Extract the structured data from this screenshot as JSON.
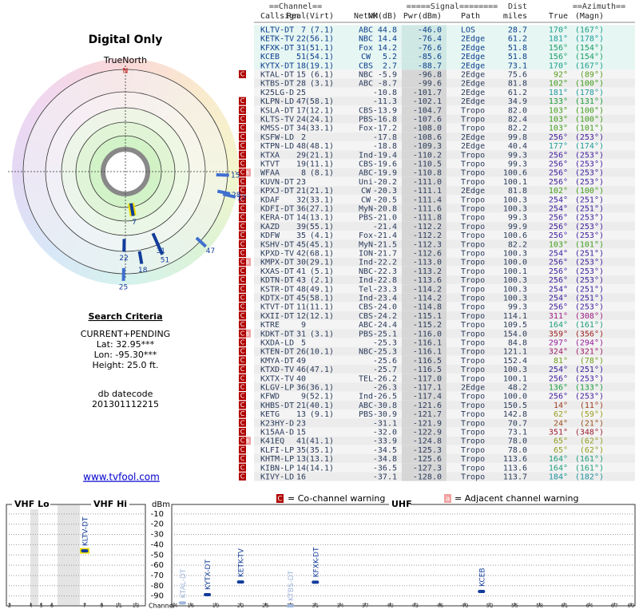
{
  "polar": {
    "title": "Digital Only",
    "north_label": "TrueNorth",
    "north": "N"
  },
  "search": {
    "title": "Search Criteria",
    "mode": "CURRENT+PENDING",
    "lat": "Lat: 32.95***",
    "lon": "Lon: -95.30***",
    "height": "Height: 25.0 ft.",
    "datecode_label": "db datecode",
    "datecode": "201301112215"
  },
  "link": "www.tvfool.com",
  "table": {
    "group_headers": [
      "==Channel==",
      "=====Signal========",
      "Dist",
      "==Azimuth=="
    ],
    "columns": [
      "Callsign",
      "Real",
      "(Virt)",
      "Netwk",
      "NM(dB)",
      "Pwr(dBm)",
      "Path",
      "miles",
      "True",
      "(Magn)"
    ],
    "rows": [
      [
        null,
        null,
        "KLTV-DT",
        7,
        "(7.1)",
        "ABC",
        "44.8",
        "-46.0",
        "LOS",
        "28.7",
        "170°",
        "(167°)"
      ],
      [
        null,
        null,
        "KETK-TV",
        22,
        "(56.1)",
        "NBC",
        "14.4",
        "-76.4",
        "2Edge",
        "61.2",
        "181°",
        "(178°)"
      ],
      [
        null,
        null,
        "KFXK-DT",
        31,
        "(51.1)",
        "Fox",
        "14.2",
        "-76.6",
        "2Edge",
        "51.8",
        "156°",
        "(154°)"
      ],
      [
        null,
        null,
        "KCEB",
        51,
        "(54.1)",
        "CW",
        "5.2",
        "-85.6",
        "2Edge",
        "51.8",
        "156°",
        "(154°)"
      ],
      [
        null,
        null,
        "KYTX-DT",
        18,
        "(19.1)",
        "CBS",
        "2.7",
        "-88.7",
        "2Edge",
        "73.1",
        "170°",
        "(167°)"
      ],
      [
        "C",
        null,
        "KTAL-DT",
        15,
        "(6.1)",
        "NBC",
        "-5.9",
        "-96.8",
        "2Edge",
        "75.6",
        "92°",
        "(89°)"
      ],
      [
        null,
        null,
        "KTBS-DT",
        28,
        "(3.1)",
        "ABC",
        "-8.7",
        "-99.6",
        "2Edge",
        "81.8",
        "102°",
        "(100°)"
      ],
      [
        null,
        null,
        "K25LG-D",
        25,
        null,
        null,
        "-10.8",
        "-101.7",
        "2Edge",
        "61.2",
        "181°",
        "(178°)"
      ],
      [
        "C",
        null,
        "KLPN-LD",
        47,
        "(58.1)",
        null,
        "-11.3",
        "-102.1",
        "2Edge",
        "34.9",
        "133°",
        "(131°)"
      ],
      [
        "C",
        null,
        "KSLA-DT",
        17,
        "(12.1)",
        "CBS",
        "-13.9",
        "-104.7",
        "Tropo",
        "82.0",
        "103°",
        "(100°)"
      ],
      [
        "C",
        null,
        "KLTS-TV",
        24,
        "(24.1)",
        "PBS",
        "-16.8",
        "-107.6",
        "Tropo",
        "82.4",
        "103°",
        "(100°)"
      ],
      [
        "C",
        null,
        "KMSS-DT",
        34,
        "(33.1)",
        "Fox",
        "-17.2",
        "-108.0",
        "Tropo",
        "82.2",
        "103°",
        "(101°)"
      ],
      [
        "C",
        null,
        "KSFW-LD",
        2,
        null,
        null,
        "-17.8",
        "-108.6",
        "2Edge",
        "99.8",
        "256°",
        "(253°)"
      ],
      [
        "C",
        null,
        "KTPN-LD",
        48,
        "(48.1)",
        null,
        "-18.8",
        "-109.3",
        "2Edge",
        "40.4",
        "177°",
        "(174°)"
      ],
      [
        "C",
        null,
        "KTXA",
        29,
        "(21.1)",
        "Ind",
        "-19.4",
        "-110.2",
        "Tropo",
        "99.3",
        "256°",
        "(253°)"
      ],
      [
        "C",
        null,
        "KTVT",
        19,
        "(11.1)",
        "CBS",
        "-19.6",
        "-110.5",
        "Tropo",
        "99.3",
        "256°",
        "(253°)"
      ],
      [
        "C",
        "a",
        "WFAA",
        8,
        "(8.1)",
        "ABC",
        "-19.9",
        "-110.8",
        "Tropo",
        "100.6",
        "256°",
        "(253°)"
      ],
      [
        "C",
        null,
        "KUVN-DT",
        23,
        null,
        "Uni",
        "-20.2",
        "-111.0",
        "Tropo",
        "100.1",
        "256°",
        "(253°)"
      ],
      [
        "C",
        null,
        "KPXJ-DT",
        21,
        "(21.1)",
        "CW",
        "-20.3",
        "-111.1",
        "2Edge",
        "81.8",
        "102°",
        "(100°)"
      ],
      [
        "C",
        null,
        "KDAF",
        32,
        "(33.1)",
        "CW",
        "-20.5",
        "-111.4",
        "Tropo",
        "100.3",
        "254°",
        "(251°)"
      ],
      [
        "C",
        null,
        "KDFI-DT",
        36,
        "(27.1)",
        "MyN",
        "-20.8",
        "-111.6",
        "Tropo",
        "100.3",
        "254°",
        "(251°)"
      ],
      [
        "C",
        null,
        "KERA-DT",
        14,
        "(13.1)",
        "PBS",
        "-21.0",
        "-111.8",
        "Tropo",
        "99.3",
        "256°",
        "(253°)"
      ],
      [
        "C",
        null,
        "KAZD",
        39,
        "(55.1)",
        null,
        "-21.4",
        "-112.2",
        "Tropo",
        "99.9",
        "256°",
        "(253°)"
      ],
      [
        "C",
        null,
        "KDFW",
        35,
        "(4.1)",
        "Fox",
        "-21.4",
        "-112.2",
        "Tropo",
        "100.6",
        "256°",
        "(253°)"
      ],
      [
        "C",
        null,
        "KSHV-DT",
        45,
        "(45.1)",
        "MyN",
        "-21.5",
        "-112.3",
        "Tropo",
        "82.2",
        "103°",
        "(101°)"
      ],
      [
        "C",
        null,
        "KPXD-TV",
        42,
        "(68.1)",
        "ION",
        "-21.7",
        "-112.6",
        "Tropo",
        "100.3",
        "254°",
        "(251°)"
      ],
      [
        "C",
        "a",
        "KMPX-DT",
        30,
        "(29.1)",
        "Ind",
        "-22.2",
        "-113.0",
        "Tropo",
        "100.0",
        "256°",
        "(253°)"
      ],
      [
        "C",
        null,
        "KXAS-DT",
        41,
        "(5.1)",
        "NBC",
        "-22.3",
        "-113.2",
        "Tropo",
        "100.1",
        "256°",
        "(253°)"
      ],
      [
        "C",
        null,
        "KDTN-DT",
        43,
        "(2.1)",
        "Ind",
        "-22.8",
        "-113.6",
        "Tropo",
        "100.3",
        "256°",
        "(253°)"
      ],
      [
        "C",
        null,
        "KSTR-DT",
        48,
        "(49.1)",
        "Tel",
        "-23.3",
        "-114.2",
        "Tropo",
        "100.3",
        "254°",
        "(251°)"
      ],
      [
        "C",
        null,
        "KDTX-DT",
        45,
        "(58.1)",
        "Ind",
        "-23.4",
        "-114.2",
        "Tropo",
        "100.3",
        "254°",
        "(251°)"
      ],
      [
        "C",
        null,
        "KTVT-DT",
        11,
        "(11.1)",
        "CBS",
        "-24.0",
        "-114.8",
        "Tropo",
        "99.3",
        "256°",
        "(253°)"
      ],
      [
        "C",
        null,
        "KXII-DT",
        12,
        "(12.1)",
        "CBS",
        "-24.2",
        "-115.1",
        "Tropo",
        "114.1",
        "311°",
        "(308°)"
      ],
      [
        "C",
        null,
        "KTRE",
        9,
        null,
        "ABC",
        "-24.4",
        "-115.2",
        "Tropo",
        "109.5",
        "164°",
        "(161°)"
      ],
      [
        "C",
        "a",
        "KDKT-DT",
        31,
        "(3.1)",
        "PBS",
        "-25.1",
        "-116.0",
        "Tropo",
        "154.0",
        "359°",
        "(356°)"
      ],
      [
        "C",
        null,
        "KXDA-LD",
        5,
        null,
        null,
        "-25.3",
        "-116.1",
        "Tropo",
        "84.8",
        "297°",
        "(294°)"
      ],
      [
        "C",
        null,
        "KTEN-DT",
        26,
        "(10.1)",
        "NBC",
        "-25.3",
        "-116.1",
        "Tropo",
        "121.1",
        "324°",
        "(321°)"
      ],
      [
        "C",
        null,
        "KMYA-DT",
        49,
        null,
        null,
        "-25.6",
        "-116.5",
        "Tropo",
        "152.4",
        "81°",
        "(78°)"
      ],
      [
        "C",
        null,
        "KTXD-TV",
        46,
        "(47.1)",
        null,
        "-25.7",
        "-116.5",
        "Tropo",
        "100.3",
        "254°",
        "(251°)"
      ],
      [
        "C",
        null,
        "KXTX-TV",
        40,
        null,
        "TEL",
        "-26.2",
        "-117.0",
        "Tropo",
        "100.1",
        "256°",
        "(253°)"
      ],
      [
        "C",
        null,
        "KLGV-LP",
        36,
        "(36.1)",
        null,
        "-26.3",
        "-117.1",
        "2Edge",
        "48.2",
        "136°",
        "(133°)"
      ],
      [
        "C",
        null,
        "KFWD",
        9,
        "(52.1)",
        "Ind",
        "-26.5",
        "-117.4",
        "Tropo",
        "100.0",
        "256°",
        "(253°)"
      ],
      [
        "C",
        null,
        "KHBS-DT",
        21,
        "(40.1)",
        "ABC",
        "-30.8",
        "-121.6",
        "Tropo",
        "150.5",
        "14°",
        "(11°)"
      ],
      [
        "C",
        null,
        "KETG",
        13,
        "(9.1)",
        "PBS",
        "-30.9",
        "-121.7",
        "Tropo",
        "142.8",
        "62°",
        "(59°)"
      ],
      [
        "C",
        null,
        "K23HY-D",
        23,
        null,
        null,
        "-31.1",
        "-121.9",
        "Tropo",
        "70.7",
        "24°",
        "(21°)"
      ],
      [
        "C",
        null,
        "K15AA-D",
        15,
        null,
        null,
        "-32.0",
        "-122.9",
        "Tropo",
        "73.1",
        "351°",
        "(348°)"
      ],
      [
        "C",
        "a",
        "K41EQ",
        41,
        "(41.1)",
        null,
        "-33.9",
        "-124.8",
        "Tropo",
        "78.0",
        "65°",
        "(62°)"
      ],
      [
        "C",
        null,
        "KLFI-LP",
        35,
        "(35.1)",
        null,
        "-34.5",
        "-125.3",
        "Tropo",
        "78.0",
        "65°",
        "(62°)"
      ],
      [
        "C",
        null,
        "KHTM-LP",
        13,
        "(13.1)",
        null,
        "-34.8",
        "-125.6",
        "Tropo",
        "113.6",
        "164°",
        "(161°)"
      ],
      [
        "C",
        null,
        "KIBN-LP",
        14,
        "(14.1)",
        null,
        "-36.5",
        "-127.3",
        "Tropo",
        "113.6",
        "164°",
        "(161°)"
      ],
      [
        "C",
        null,
        "KIVY-LD",
        16,
        null,
        null,
        "-37.1",
        "-128.0",
        "Tropo",
        "113.7",
        "184°",
        "(182°)"
      ]
    ]
  },
  "legend": {
    "co": "C",
    "co_text": "= Co-channel warning",
    "adj": "a",
    "adj_text": "= Adjacent channel warning"
  },
  "spectrum": {
    "ylabel": "dBm",
    "xlabel": "Channel",
    "ylim": [
      -100,
      0
    ],
    "yticks": [
      -10,
      -20,
      -30,
      -40,
      -50,
      -60,
      -70,
      -80,
      -90
    ],
    "bands": [
      {
        "name": "VHF Lo",
        "xlim": [
          2,
          6
        ],
        "xticks": [
          2,
          4,
          5,
          6
        ]
      },
      {
        "name": "VHF Hi",
        "xlim": [
          7,
          13
        ],
        "xticks": [
          7,
          9,
          11,
          13
        ]
      },
      {
        "name": "UHF",
        "xlim": [
          14,
          69
        ],
        "xticks": [
          14,
          16,
          19,
          22,
          25,
          28,
          31,
          34,
          37,
          40,
          43,
          46,
          49,
          52,
          55,
          58,
          61,
          64,
          67,
          69
        ]
      }
    ]
  }
}
